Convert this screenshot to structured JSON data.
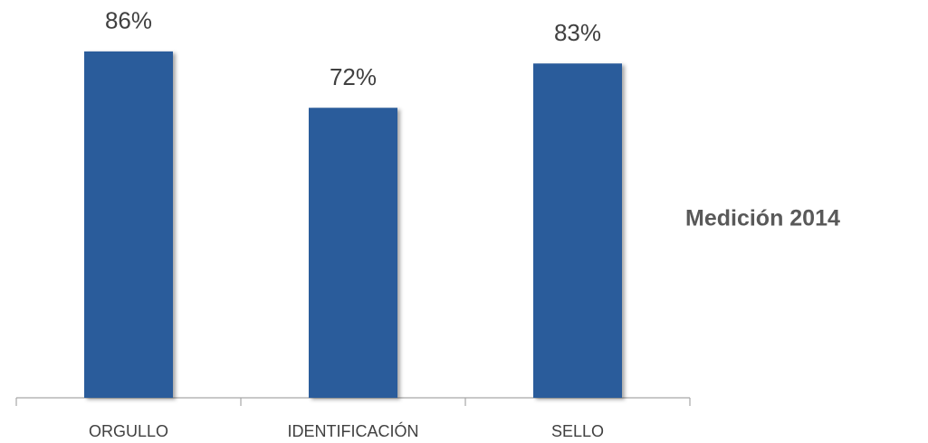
{
  "chart_data": {
    "type": "bar",
    "categories": [
      "ORGULLO",
      "IDENTIFICACIÓN",
      "SELLO"
    ],
    "series": [
      {
        "name": "Medición 2014",
        "color": "#2a5b9b",
        "values": [
          86,
          72,
          83
        ],
        "value_labels": [
          "86%",
          "72%",
          "83%"
        ]
      }
    ]
  }
}
